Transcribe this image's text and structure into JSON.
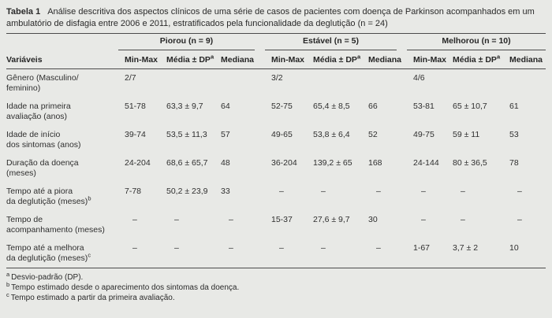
{
  "caption": {
    "label": "Tabela 1",
    "text": "Análise descritiva dos aspectos clínicos de uma série de casos de pacientes com doença de Parkinson acompanhados em um ambulatório de disfagia entre 2006 e 2011, estratificados pela funcionalidade da deglutição (n = 24)"
  },
  "table": {
    "row_header": "Variáveis",
    "groups": [
      {
        "label": "Piorou (n = 9)"
      },
      {
        "label": "Estável (n = 5)"
      },
      {
        "label": "Melhorou (n = 10)"
      }
    ],
    "subheaders": [
      {
        "text": "Min-Max",
        "sup": ""
      },
      {
        "text": "Média ± DP",
        "sup": "a"
      },
      {
        "text": "Mediana",
        "sup": ""
      }
    ],
    "rows": [
      {
        "line1": "Gênero (Masculino/",
        "line2": "feminino)",
        "sup": "",
        "cells": [
          "2/7",
          "",
          "",
          "3/2",
          "",
          "",
          "4/6",
          "",
          ""
        ]
      },
      {
        "line1": "Idade na primeira",
        "line2": "avaliação (anos)",
        "sup": "",
        "cells": [
          "51-78",
          "63,3 ± 9,7",
          "64",
          "52-75",
          "65,4 ± 8,5",
          "66",
          "53-81",
          "65 ± 10,7",
          "61"
        ]
      },
      {
        "line1": "Idade de início",
        "line2": "dos sintomas (anos)",
        "sup": "",
        "cells": [
          "39-74",
          "53,5 ± 11,3",
          "57",
          "49-65",
          "53,8 ± 6,4",
          "52",
          "49-75",
          "59 ± 11",
          "53"
        ]
      },
      {
        "line1": "Duração da doença",
        "line2": "(meses)",
        "sup": "",
        "cells": [
          "24-204",
          "68,6 ± 65,7",
          "48",
          "36-204",
          "139,2 ± 65",
          "168",
          "24-144",
          "80 ± 36,5",
          "78"
        ]
      },
      {
        "line1": "Tempo até a piora",
        "line2": "da deglutição (meses)",
        "sup": "b",
        "cells": [
          "7-78",
          "50,2 ± 23,9",
          "33",
          "–",
          "–",
          "–",
          "–",
          "–",
          "–"
        ]
      },
      {
        "line1": "Tempo de",
        "line2": "acompanhamento (meses)",
        "sup": "",
        "cells": [
          "–",
          "–",
          "–",
          "15-37",
          "27,6 ± 9,7",
          "30",
          "–",
          "–",
          "–"
        ]
      },
      {
        "line1": "Tempo até a melhora",
        "line2": "da deglutição (meses)",
        "sup": "c",
        "cells": [
          "–",
          "–",
          "–",
          "–",
          "–",
          "–",
          "1-67",
          "3,7 ± 2",
          "10"
        ]
      }
    ]
  },
  "footnotes": [
    {
      "sup": "a",
      "text": "Desvio-padrão (DP)."
    },
    {
      "sup": "b",
      "text": "Tempo estimado desde o aparecimento dos sintomas da doença."
    },
    {
      "sup": "c",
      "text": "Tempo estimado a partir da primeira avaliação."
    }
  ]
}
